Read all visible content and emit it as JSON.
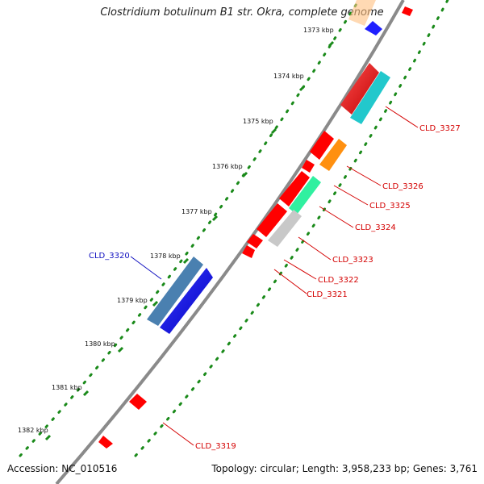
{
  "header": {
    "title": "Clostridium botulinum B1 str. Okra, complete genome"
  },
  "footer": {
    "accession": "Accession: NC_010516",
    "topology": "Topology: circular; Length: 3,958,233 bp; Genes: 3,761"
  },
  "ruler": {
    "unit": "kbp",
    "labels": [
      "1373 kbp",
      "1374 kbp",
      "1375 kbp",
      "1376 kbp",
      "1377 kbp",
      "1378 kbp",
      "1379 kbp",
      "1380 kbp",
      "1381 kbp",
      "1382 kbp"
    ]
  },
  "genes": {
    "cld_3327": "CLD_3327",
    "cld_3326": "CLD_3326",
    "cld_3325": "CLD_3325",
    "cld_3324": "CLD_3324",
    "cld_3323": "CLD_3323",
    "cld_3322": "CLD_3322",
    "cld_3321": "CLD_3321",
    "cld_3320": "CLD_3320",
    "cld_3319": "CLD_3319"
  },
  "colors": {
    "backbone": "#8a8a8a",
    "ruler_dots": "#1a8a1a",
    "label_red": "#d40000",
    "label_blue": "#1010c0",
    "gene_red": "#ff0000",
    "gene_cyan": "#22c8cc",
    "gene_orange": "#ff9010",
    "gene_green": "#30f0a0",
    "gene_grey": "#c8c8c8",
    "gene_steel": "#4a80b0",
    "gene_blue": "#0000ff"
  }
}
